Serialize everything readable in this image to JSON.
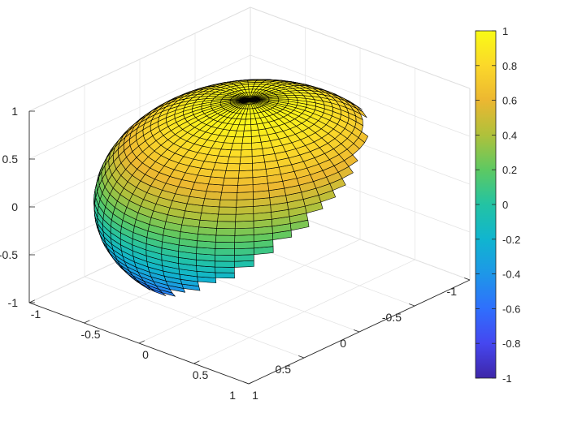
{
  "chart_data": {
    "type": "surface",
    "surface": "sphere",
    "title": "",
    "xlabel": "",
    "ylabel": "",
    "zlabel": "",
    "radius": 1,
    "grid_segments": 50,
    "xlim": [
      -1,
      1
    ],
    "ylim": [
      -1,
      1
    ],
    "zlim": [
      -1,
      1
    ],
    "x_ticks": [
      "-1",
      "-0.5",
      "0",
      "0.5",
      "1"
    ],
    "y_ticks": [
      "-1",
      "-0.5",
      "0",
      "0.5",
      "1"
    ],
    "z_ticks": [
      "-1",
      "-0.5",
      "0",
      "0.5",
      "1"
    ],
    "color_by": "z",
    "colormap": "parula",
    "colormap_stops": [
      "#3e26a8",
      "#4547f0",
      "#2f6ffd",
      "#1e97e8",
      "#10b5cf",
      "#23c3a3",
      "#5dc962",
      "#afc13b",
      "#ecb731",
      "#fbd82a",
      "#f9fb15"
    ],
    "edge_color": "#000000",
    "box_grid": true,
    "colorbar": {
      "placement": "right",
      "range": [
        -1,
        1
      ],
      "ticks": [
        "-1",
        "-0.8",
        "-0.6",
        "-0.4",
        "-0.2",
        "0",
        "0.2",
        "0.4",
        "0.6",
        "0.8",
        "1"
      ]
    }
  }
}
